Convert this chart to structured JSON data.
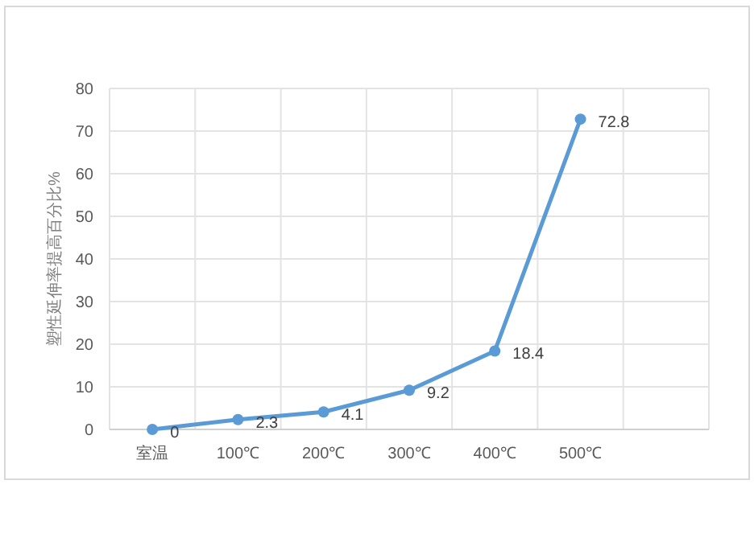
{
  "chart_data": {
    "type": "line",
    "ylabel": "塑性延伸率提高百分比%",
    "categories": [
      "室温",
      "100℃",
      "200℃",
      "300℃",
      "400℃",
      "500℃",
      null
    ],
    "series": [
      {
        "color": "#5b9bd5",
        "values": [
          0,
          2.3,
          4.1,
          9.2,
          18.4,
          72.8,
          null
        ]
      }
    ],
    "ylim": [
      0,
      80
    ],
    "yticks": [
      0,
      10,
      20,
      30,
      40,
      50,
      60,
      70,
      80
    ],
    "grid": true,
    "data_labels": true,
    "marker": "circle",
    "line_style": "solid"
  }
}
